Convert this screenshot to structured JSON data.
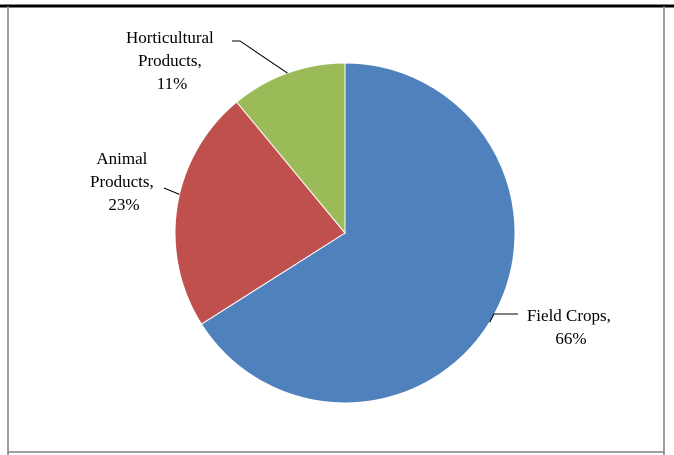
{
  "chart_data": {
    "type": "pie",
    "title": "",
    "slices": [
      {
        "name": "Field Crops",
        "value": 66,
        "label_line1": "Field Crops,",
        "label_line2": "66%",
        "color": "#4F81BD"
      },
      {
        "name": "Animal Products",
        "value": 23,
        "label_line1": "Animal",
        "label_line2": "Products,",
        "label_line3": "23%",
        "color": "#C0504D"
      },
      {
        "name": "Horticultural Products",
        "value": 11,
        "label_line1": "Horticultural",
        "label_line2": "Products,",
        "label_line3": "11%",
        "color": "#9BBB59"
      }
    ],
    "start_angle_deg": 0,
    "direction": "clockwise",
    "legend": "none",
    "label_style": "outside with leader lines"
  }
}
